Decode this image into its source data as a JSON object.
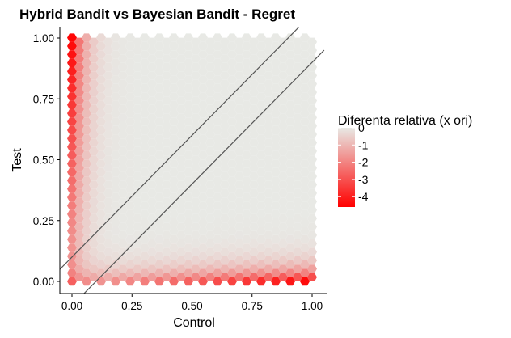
{
  "chart_data": {
    "type": "hexbin",
    "title": "Hybrid Bandit vs Bayesian Bandit - Regret",
    "xlabel": "Control",
    "ylabel": "Test",
    "xlim": [
      -0.04,
      1.06
    ],
    "ylim": [
      -0.05,
      1.02
    ],
    "x_ticks": [
      0.0,
      0.25,
      0.5,
      0.75,
      1.0
    ],
    "x_tick_labels": [
      "0.00",
      "0.25",
      "0.50",
      "0.75",
      "1.00"
    ],
    "y_ticks": [
      0.0,
      0.25,
      0.5,
      0.75,
      1.0
    ],
    "y_tick_labels": [
      "0.00",
      "0.25",
      "0.50",
      "0.75",
      "1.00"
    ],
    "grid": false,
    "fill": {
      "name": "Diferenta relativa (x ori)",
      "range": [
        -4.6,
        0
      ],
      "low_color": "#ff0000",
      "high_color": "#e8e9e5",
      "legend_breaks": [
        0,
        -1,
        -2,
        -3,
        -4
      ],
      "legend_labels": [
        "0",
        "-1",
        "-2",
        "-3",
        "-4"
      ],
      "legend_position": "right"
    },
    "pattern": {
      "description_values": "fill equals 0 in the interior and decreases toward the axes: along x = 0 for all test values, along y = 0 for all control values; minimum about -4.5 at the corners (0, 1) and (1, 0)",
      "edge_min_along_left": -4.5,
      "edge_min_along_bottom": -4.5
    },
    "reference_lines": [
      {
        "type": "line",
        "x": [
          -0.05,
          0.95
        ],
        "y": [
          0.05,
          1.05
        ]
      },
      {
        "type": "line",
        "x": [
          0.05,
          1.05
        ],
        "y": [
          -0.05,
          0.95
        ]
      }
    ]
  }
}
